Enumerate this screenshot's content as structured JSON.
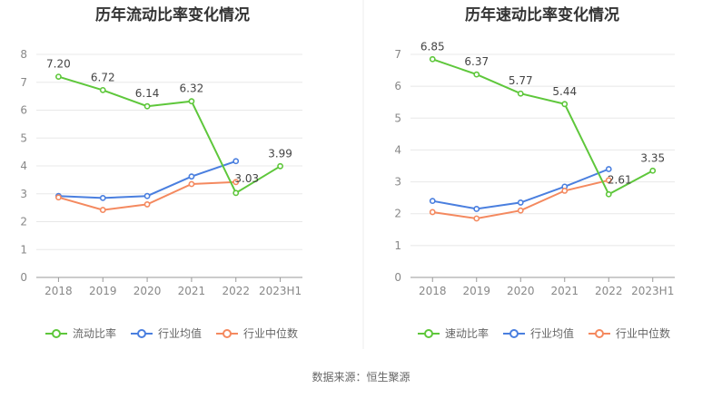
{
  "chart_data": [
    {
      "type": "line",
      "title": "历年流动比率变化情况",
      "categories": [
        "2018",
        "2019",
        "2020",
        "2021",
        "2022",
        "2023H1"
      ],
      "ylim": [
        0,
        8
      ],
      "yticks": [
        "0",
        "1",
        "2",
        "3",
        "4",
        "5",
        "6",
        "7",
        "8"
      ],
      "grid": true,
      "legend": "bottom",
      "series": [
        {
          "name": "流动比率",
          "color": "#5ec73b",
          "values": [
            7.2,
            6.72,
            6.14,
            6.32,
            3.03,
            3.99
          ],
          "labels": [
            "7.20",
            "6.72",
            "6.14",
            "6.32",
            "3.03",
            "3.99"
          ]
        },
        {
          "name": "行业均值",
          "color": "#4a7fdf",
          "values": [
            2.92,
            2.85,
            2.92,
            3.62,
            4.17,
            null
          ]
        },
        {
          "name": "行业中位数",
          "color": "#f4895f",
          "values": [
            2.87,
            2.42,
            2.62,
            3.35,
            3.42,
            null
          ]
        }
      ]
    },
    {
      "type": "line",
      "title": "历年速动比率变化情况",
      "categories": [
        "2018",
        "2019",
        "2020",
        "2021",
        "2022",
        "2023H1"
      ],
      "ylim": [
        0,
        7
      ],
      "yticks": [
        "0",
        "1",
        "2",
        "3",
        "4",
        "5",
        "6",
        "7"
      ],
      "grid": true,
      "legend": "bottom",
      "series": [
        {
          "name": "速动比率",
          "color": "#5ec73b",
          "values": [
            6.85,
            6.37,
            5.77,
            5.44,
            2.61,
            3.35
          ],
          "labels": [
            "6.85",
            "6.37",
            "5.77",
            "5.44",
            "2.61",
            "3.35"
          ]
        },
        {
          "name": "行业均值",
          "color": "#4a7fdf",
          "values": [
            2.4,
            2.15,
            2.35,
            2.85,
            3.4,
            null
          ]
        },
        {
          "name": "行业中位数",
          "color": "#f4895f",
          "values": [
            2.05,
            1.85,
            2.1,
            2.72,
            3.05,
            null
          ]
        }
      ]
    }
  ],
  "footer": {
    "source": "数据来源：恒生聚源"
  }
}
